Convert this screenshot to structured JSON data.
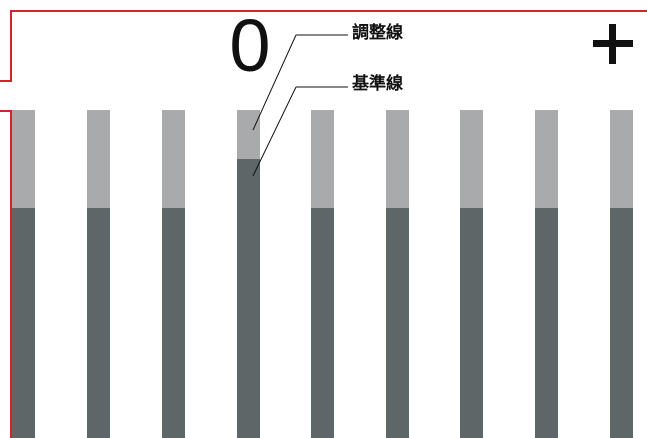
{
  "counter": {
    "value": "0"
  },
  "controls": {
    "plus_icon": "plus-icon"
  },
  "labels": {
    "adjust_line": "調整線",
    "base_line": "基準線"
  },
  "colors": {
    "frame": "#d2232a",
    "bar_track": "#a9aaac",
    "bar_fill": "#5f6667",
    "text": "#111111"
  },
  "bars": {
    "count": 9,
    "levels": [
      0.7,
      0.7,
      0.7,
      0.85,
      0.7,
      0.7,
      0.7,
      0.7,
      0.7
    ],
    "highlighted_index": 3
  }
}
